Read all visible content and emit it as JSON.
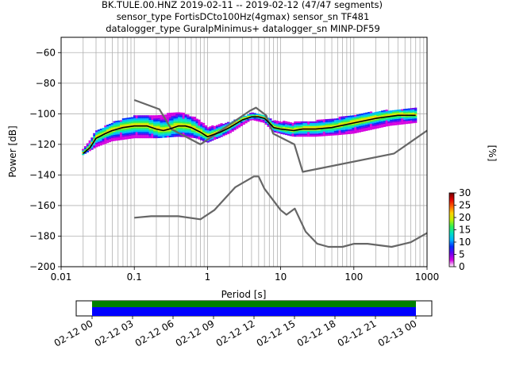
{
  "title_lines": [
    "BK.TULE.00.HNZ   2019-02-11 -- 2019-02-12  (47/47 segments)",
    "sensor_type FortisDCto100Hz(4gmax) sensor_sn TF481",
    "datalogger_type GuralpMinimus+ datalogger_sn MINP-DF59"
  ],
  "chart_data": {
    "type": "heatmap",
    "x_axis": {
      "label": "Period [s]",
      "scale": "log",
      "range": [
        0.01,
        1000
      ],
      "tick_values": [
        0.01,
        0.1,
        1,
        10,
        100,
        1000
      ],
      "tick_labels": [
        "0.01",
        "0.1",
        "1",
        "10",
        "100",
        "1000"
      ]
    },
    "y_axis": {
      "label": "Power [dB]",
      "range": [
        -200,
        -50
      ],
      "tick_values": [
        -60,
        -80,
        -100,
        -120,
        -140,
        -160,
        -180,
        -200
      ],
      "tick_labels": [
        "−60",
        "−80",
        "−100",
        "−120",
        "−140",
        "−160",
        "−180",
        "−200"
      ]
    },
    "grid": true,
    "colorbar": {
      "label": "[%]",
      "range": [
        0,
        30
      ],
      "tick_values": [
        0,
        5,
        10,
        15,
        20,
        25,
        30
      ],
      "tick_labels": [
        "0",
        "5",
        "10",
        "15",
        "20",
        "25",
        "30"
      ],
      "colors": [
        "#ffffff",
        "#d400e0",
        "#6a00f0",
        "#0030ff",
        "#00b4ff",
        "#00e0c0",
        "#30f050",
        "#c0f000",
        "#ffd000",
        "#ff6000",
        "#e00000",
        "#700000"
      ]
    },
    "mode_curve": [
      [
        0.02,
        -126
      ],
      [
        0.025,
        -122
      ],
      [
        0.03,
        -116
      ],
      [
        0.04,
        -113
      ],
      [
        0.05,
        -111
      ],
      [
        0.07,
        -109
      ],
      [
        0.1,
        -108
      ],
      [
        0.15,
        -108
      ],
      [
        0.2,
        -110
      ],
      [
        0.25,
        -111
      ],
      [
        0.3,
        -110
      ],
      [
        0.4,
        -108
      ],
      [
        0.5,
        -108
      ],
      [
        0.6,
        -109
      ],
      [
        0.8,
        -112
      ],
      [
        1.0,
        -115
      ],
      [
        1.5,
        -112
      ],
      [
        2,
        -109
      ],
      [
        3,
        -104
      ],
      [
        4,
        -102
      ],
      [
        5,
        -102
      ],
      [
        6,
        -103
      ],
      [
        7,
        -106
      ],
      [
        8,
        -109
      ],
      [
        10,
        -110
      ],
      [
        15,
        -111
      ],
      [
        20,
        -110
      ],
      [
        30,
        -110
      ],
      [
        50,
        -109
      ],
      [
        100,
        -106
      ],
      [
        200,
        -103
      ],
      [
        400,
        -101
      ],
      [
        700,
        -101
      ]
    ],
    "density_band": [
      [
        0.02,
        -127,
        -124
      ],
      [
        0.03,
        -122,
        -112
      ],
      [
        0.05,
        -118,
        -106
      ],
      [
        0.1,
        -116,
        -102
      ],
      [
        0.2,
        -116,
        -102
      ],
      [
        0.4,
        -115,
        -99
      ],
      [
        0.7,
        -116,
        -103
      ],
      [
        1.0,
        -119,
        -109
      ],
      [
        2,
        -113,
        -106
      ],
      [
        4,
        -104,
        -100
      ],
      [
        6,
        -106,
        -101
      ],
      [
        8,
        -112,
        -105
      ],
      [
        15,
        -115,
        -106
      ],
      [
        30,
        -115,
        -105
      ],
      [
        60,
        -114,
        -103
      ],
      [
        100,
        -113,
        -101
      ],
      [
        300,
        -108,
        -98
      ],
      [
        700,
        -106,
        -97
      ]
    ],
    "nhnm": [
      [
        0.1,
        -91
      ],
      [
        0.22,
        -97
      ],
      [
        0.32,
        -110
      ],
      [
        0.8,
        -120
      ],
      [
        3.8,
        -98
      ],
      [
        4.6,
        -96
      ],
      [
        6.3,
        -101
      ],
      [
        7.9,
        -113
      ],
      [
        15.4,
        -120
      ],
      [
        20,
        -138
      ],
      [
        354.8,
        -126
      ],
      [
        1000,
        -111
      ]
    ],
    "nlnm": [
      [
        0.1,
        -168
      ],
      [
        0.17,
        -167
      ],
      [
        0.4,
        -167
      ],
      [
        0.8,
        -169
      ],
      [
        1.24,
        -163
      ],
      [
        2.4,
        -148
      ],
      [
        4.3,
        -141
      ],
      [
        5,
        -141
      ],
      [
        6,
        -149
      ],
      [
        10,
        -163
      ],
      [
        12,
        -166
      ],
      [
        15.6,
        -162
      ],
      [
        21.9,
        -177
      ],
      [
        31.6,
        -185
      ],
      [
        45,
        -187
      ],
      [
        70,
        -187
      ],
      [
        101,
        -185
      ],
      [
        154,
        -185
      ],
      [
        328,
        -187
      ],
      [
        600,
        -184
      ],
      [
        1000,
        -178
      ]
    ]
  },
  "time_axis": {
    "tick_labels": [
      "02-12 00",
      "02-12 03",
      "02-12 06",
      "02-12 09",
      "02-12 12",
      "02-12 15",
      "02-12 18",
      "02-12 21",
      "02-13 00"
    ],
    "bar_colors": [
      "#008000",
      "#0000ff"
    ]
  }
}
